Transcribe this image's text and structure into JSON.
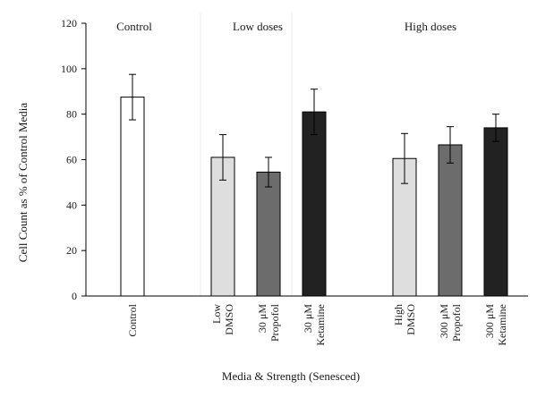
{
  "chart_data": {
    "type": "bar",
    "title": "",
    "xlabel": "Media & Strength (Senesced)",
    "ylabel": "Cell Count as % of Control Media",
    "ylim": [
      0,
      120
    ],
    "yticks": [
      0,
      20,
      40,
      60,
      80,
      100,
      120
    ],
    "grid": false,
    "group_headers": [
      "Control",
      "Low doses",
      "High doses"
    ],
    "categories": [
      [
        "Control"
      ],
      [
        "Low",
        "DMSO"
      ],
      [
        "30 μM",
        "Propofol"
      ],
      [
        "30 μM",
        "Ketamine"
      ],
      [
        "High",
        "DMSO"
      ],
      [
        "300 μM",
        "Propofol"
      ],
      [
        "300 μM",
        "Ketamine"
      ]
    ],
    "values": [
      87.5,
      61,
      54.5,
      81,
      60.5,
      66.5,
      74
    ],
    "errors": [
      10,
      10,
      6.5,
      10,
      11,
      8,
      6
    ],
    "colors": [
      "#ffffff",
      "#dedede",
      "#6c6c6c",
      "#222222",
      "#dedede",
      "#6c6c6c",
      "#222222"
    ]
  }
}
